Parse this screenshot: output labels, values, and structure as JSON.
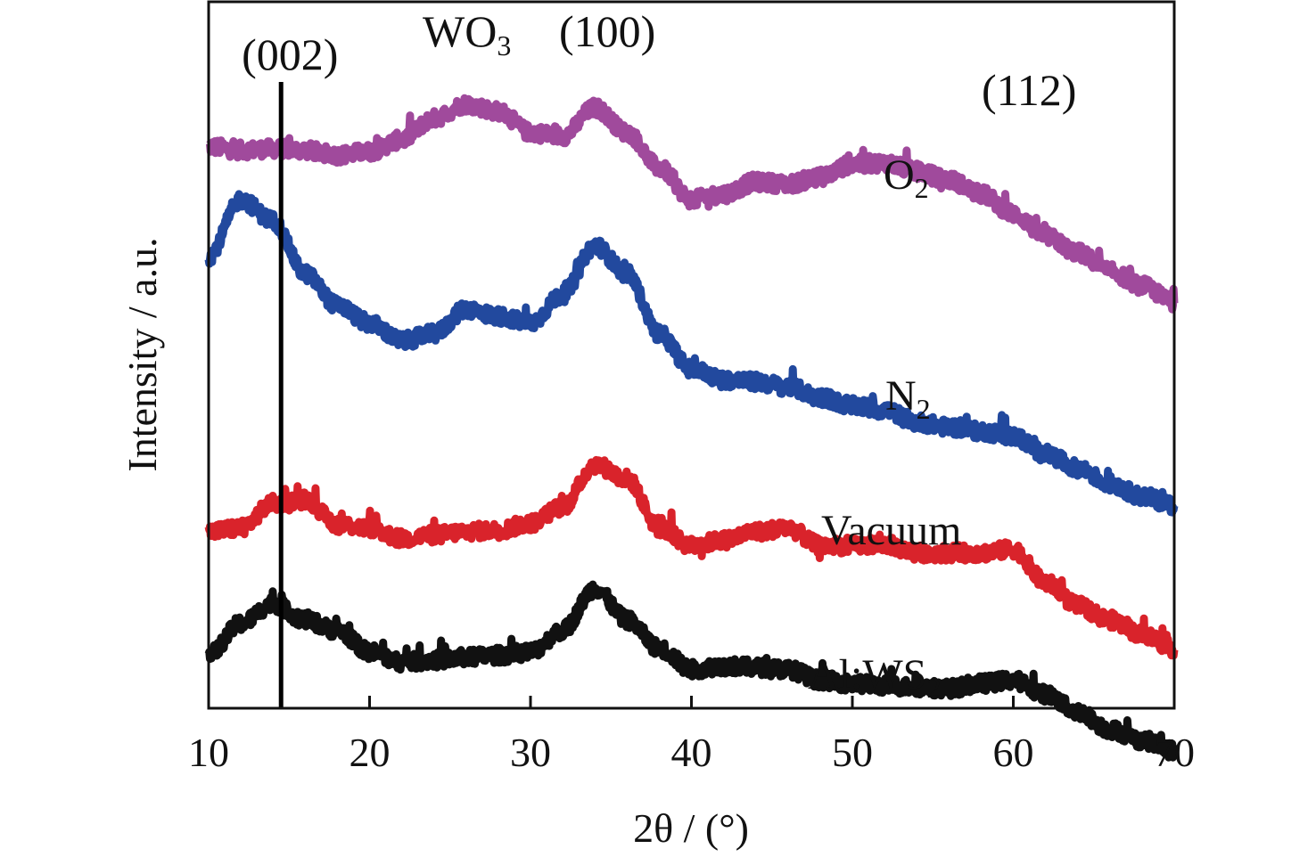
{
  "chart_data": {
    "type": "line",
    "xlabel": "2θ / (°)",
    "ylabel": "Intensity / a.u.",
    "xlim": [
      10,
      70
    ],
    "x_ticks": [
      "10",
      "20",
      "30",
      "40",
      "50",
      "60",
      "70"
    ],
    "y_ticks_shown": false,
    "grid": false,
    "legend": "none (series labelled directly on curves)",
    "reference_line": {
      "x": 14.5,
      "label": "(002)"
    },
    "annotations": [
      {
        "text": "WO",
        "sub": "3",
        "x": 27,
        "near_series": "O2"
      },
      {
        "text": "(100)",
        "x": 34,
        "near_series": "O2"
      },
      {
        "text": "(112)",
        "x": 60,
        "near_series": "O2"
      }
    ],
    "series": [
      {
        "name": "O2",
        "label_text": "O",
        "label_sub": "2",
        "color": "#a04a9c",
        "x": [
          10,
          12,
          14,
          16,
          18,
          20,
          22,
          24,
          26,
          28,
          30,
          32,
          34,
          36,
          38,
          40,
          42,
          44,
          46,
          48,
          50,
          52,
          54,
          56,
          58,
          60,
          62,
          64,
          66,
          68,
          70
        ],
        "y": [
          0.795,
          0.79,
          0.792,
          0.79,
          0.783,
          0.788,
          0.805,
          0.835,
          0.855,
          0.845,
          0.815,
          0.81,
          0.85,
          0.815,
          0.765,
          0.72,
          0.728,
          0.745,
          0.742,
          0.752,
          0.77,
          0.772,
          0.76,
          0.748,
          0.728,
          0.7,
          0.668,
          0.645,
          0.618,
          0.598,
          0.575
        ]
      },
      {
        "name": "N2",
        "label_text": "N",
        "label_sub": "2",
        "color": "#22499e",
        "x": [
          10,
          12,
          14,
          16,
          18,
          20,
          22,
          24,
          26,
          28,
          30,
          32,
          34,
          36,
          38,
          40,
          42,
          44,
          46,
          48,
          50,
          52,
          54,
          56,
          58,
          60,
          62,
          64,
          66,
          68,
          70
        ],
        "y": [
          0.64,
          0.72,
          0.69,
          0.615,
          0.57,
          0.545,
          0.52,
          0.53,
          0.565,
          0.555,
          0.545,
          0.585,
          0.655,
          0.615,
          0.53,
          0.48,
          0.465,
          0.462,
          0.455,
          0.44,
          0.428,
          0.422,
          0.405,
          0.398,
          0.392,
          0.385,
          0.36,
          0.34,
          0.318,
          0.3,
          0.288
        ]
      },
      {
        "name": "Vacuum",
        "label_text": "Vacuum",
        "label_sub": "",
        "color": "#d9232b",
        "x": [
          10,
          12,
          14,
          16,
          18,
          20,
          22,
          24,
          26,
          28,
          30,
          32,
          34,
          36,
          38,
          40,
          42,
          44,
          46,
          48,
          50,
          52,
          54,
          56,
          58,
          60,
          62,
          64,
          66,
          68,
          70
        ],
        "y": [
          0.25,
          0.255,
          0.29,
          0.295,
          0.26,
          0.255,
          0.24,
          0.245,
          0.25,
          0.252,
          0.262,
          0.285,
          0.345,
          0.325,
          0.255,
          0.23,
          0.238,
          0.25,
          0.255,
          0.23,
          0.23,
          0.232,
          0.22,
          0.22,
          0.22,
          0.225,
          0.178,
          0.145,
          0.125,
          0.105,
          0.085
        ]
      },
      {
        "name": "Al:WS2",
        "label_text": "Al:WS",
        "label_sub": "2",
        "color": "#111111",
        "x": [
          10,
          12,
          14,
          16,
          18,
          20,
          22,
          24,
          26,
          28,
          30,
          32,
          34,
          36,
          38,
          40,
          42,
          44,
          46,
          48,
          50,
          52,
          54,
          56,
          58,
          60,
          62,
          64,
          66,
          68,
          70
        ],
        "y": [
          0.075,
          0.12,
          0.148,
          0.125,
          0.11,
          0.08,
          0.065,
          0.068,
          0.072,
          0.075,
          0.08,
          0.11,
          0.17,
          0.125,
          0.085,
          0.055,
          0.06,
          0.058,
          0.055,
          0.04,
          0.035,
          0.032,
          0.03,
          0.028,
          0.035,
          0.04,
          0.02,
          -0.005,
          -0.03,
          -0.045,
          -0.06
        ]
      }
    ]
  }
}
